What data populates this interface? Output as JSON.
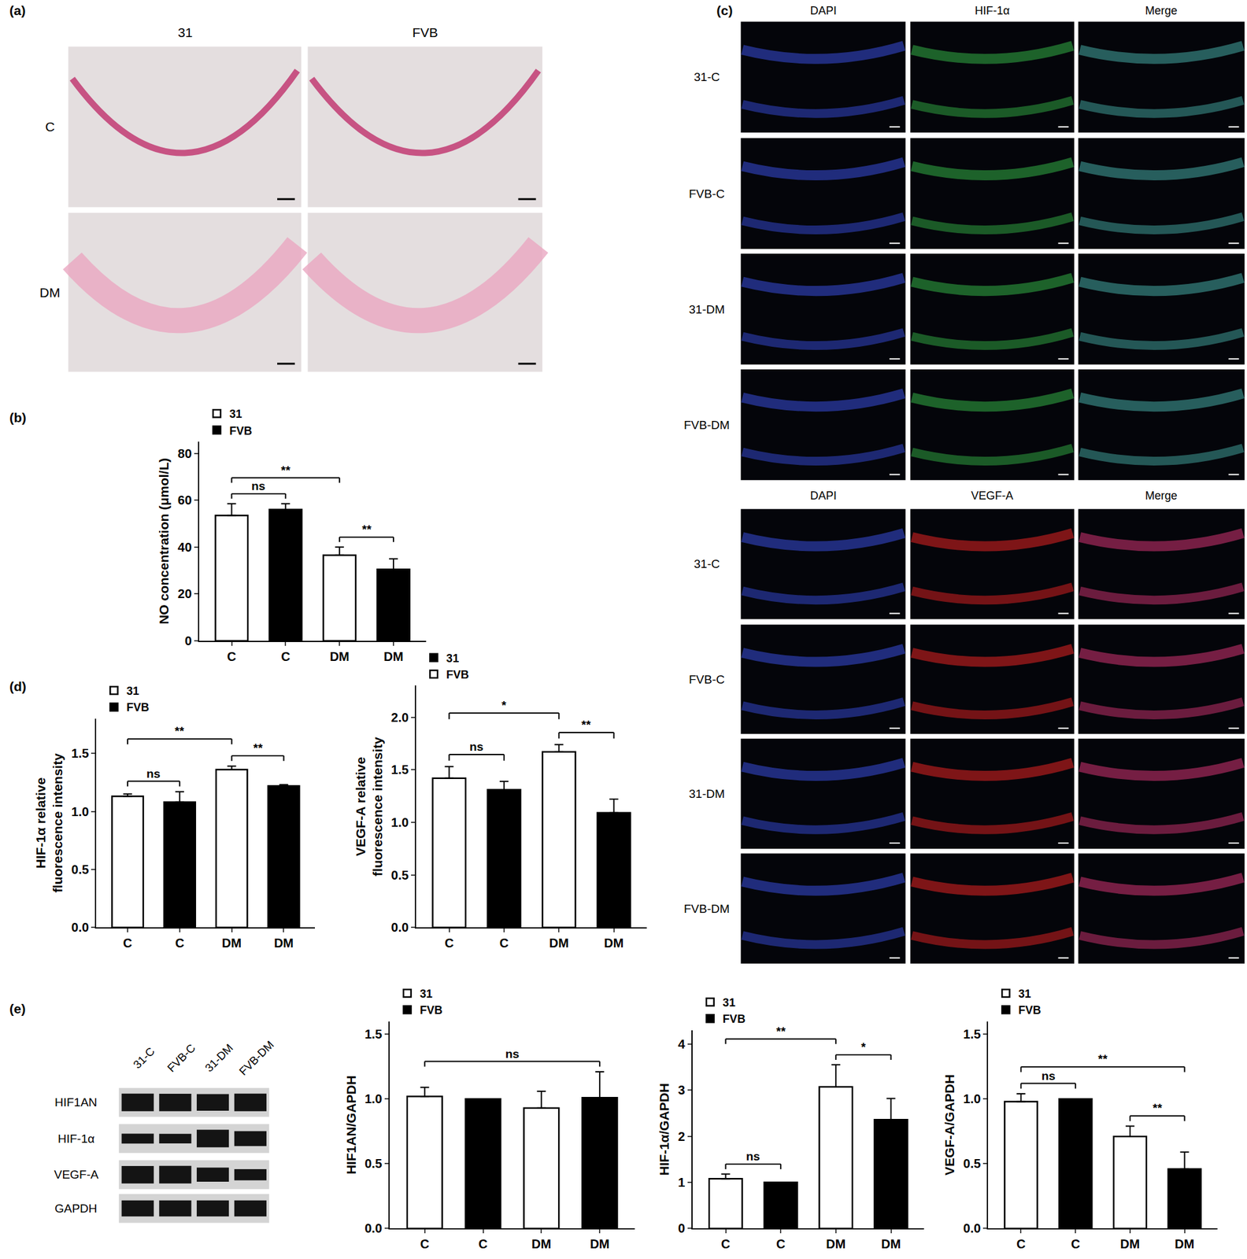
{
  "chart_data": [
    {
      "type": "bar",
      "y_label": "NO concentration (μmol/L)",
      "categories": [
        "C",
        "C",
        "DM",
        "DM"
      ],
      "series": [
        {
          "name": "31",
          "color": "#ffffff",
          "values": [
            53.5,
            null,
            36.5,
            null
          ],
          "errors": [
            5,
            null,
            3.5,
            null
          ]
        },
        {
          "name": "FVB",
          "color": "#000000",
          "values": [
            null,
            56,
            null,
            30.5
          ],
          "errors": [
            null,
            2.5,
            null,
            4.5
          ]
        }
      ],
      "ylim": [
        0,
        85
      ],
      "yticks": [
        0,
        20,
        40,
        60,
        80
      ],
      "legend": "upper left",
      "significance": [
        {
          "between": [
            0,
            1
          ],
          "text": "ns"
        },
        {
          "between": [
            2,
            3
          ],
          "text": "**"
        },
        {
          "between": [
            0,
            2
          ],
          "text": "**"
        }
      ]
    },
    {
      "type": "bar",
      "y_label": "HIF-1α relative\nfluorescence intensity",
      "categories": [
        "C",
        "C",
        "DM",
        "DM"
      ],
      "series": [
        {
          "name": "31",
          "color": "#ffffff",
          "values": [
            1.13,
            null,
            1.36,
            null
          ],
          "errors": [
            0.02,
            null,
            0.03,
            null
          ]
        },
        {
          "name": "FVB",
          "color": "#000000",
          "values": [
            null,
            1.08,
            null,
            1.22
          ],
          "errors": [
            null,
            0.09,
            null,
            0.01
          ]
        }
      ],
      "ylim": [
        0,
        1.8
      ],
      "yticks": [
        {
          "value": 0,
          "label": "0.0"
        },
        0.5,
        {
          "value": 1,
          "label": "1.0"
        },
        1.5
      ],
      "legend": "upper left",
      "significance": [
        {
          "between": [
            0,
            1
          ],
          "text": "ns"
        },
        {
          "between": [
            2,
            3
          ],
          "text": "**"
        },
        {
          "between": [
            0,
            2
          ],
          "text": "**"
        }
      ]
    },
    {
      "type": "bar",
      "y_label": "VEGF-A relative\nfluorescence intensity",
      "categories": [
        "C",
        "C",
        "DM",
        "DM"
      ],
      "series": [
        {
          "name": "31",
          "color": "#000000",
          "values": [
            null,
            1.31,
            null,
            1.09
          ],
          "errors": [
            null,
            0.08,
            null,
            0.13
          ]
        },
        {
          "name": "FVB",
          "color": "#ffffff",
          "values": [
            1.42,
            null,
            1.67,
            null
          ],
          "errors": [
            0.11,
            null,
            0.07,
            null
          ]
        }
      ],
      "ylim": [
        0,
        2.3
      ],
      "yticks": [
        {
          "value": 0,
          "label": "0.0"
        },
        0.5,
        {
          "value": 1,
          "label": "1.0"
        },
        1.5,
        {
          "value": 2,
          "label": "2.0"
        }
      ],
      "legend": "upper left",
      "significance": [
        {
          "between": [
            0,
            1
          ],
          "text": "ns"
        },
        {
          "between": [
            2,
            3
          ],
          "text": "**"
        },
        {
          "between": [
            0,
            2
          ],
          "text": "*"
        }
      ]
    },
    {
      "type": "bar",
      "y_label": "HIF1AN/GAPDH",
      "categories": [
        "C",
        "C",
        "DM",
        "DM"
      ],
      "series": [
        {
          "name": "31",
          "color": "#ffffff",
          "values": [
            1.02,
            null,
            0.93,
            null
          ],
          "errors": [
            0.07,
            null,
            0.13,
            null
          ]
        },
        {
          "name": "FVB",
          "color": "#000000",
          "values": [
            null,
            1.0,
            null,
            1.01
          ],
          "errors": [
            null,
            0,
            null,
            0.2
          ]
        }
      ],
      "ylim": [
        0,
        1.6
      ],
      "yticks": [
        {
          "value": 0,
          "label": "0.0"
        },
        0.5,
        {
          "value": 1,
          "label": "1.0"
        },
        1.5
      ],
      "legend": "upper left",
      "significance": [
        {
          "between": [
            0,
            3
          ],
          "text": "ns"
        }
      ]
    },
    {
      "type": "bar",
      "y_label": "HIF-1α/GAPDH",
      "categories": [
        "C",
        "C",
        "DM",
        "DM"
      ],
      "series": [
        {
          "name": "31",
          "color": "#ffffff",
          "values": [
            1.08,
            null,
            3.07,
            null
          ],
          "errors": [
            0.1,
            null,
            0.48,
            null
          ]
        },
        {
          "name": "FVB",
          "color": "#000000",
          "values": [
            null,
            1.0,
            null,
            2.36
          ],
          "errors": [
            null,
            0,
            null,
            0.46
          ]
        }
      ],
      "ylim": [
        0,
        4.3
      ],
      "yticks": [
        0,
        1,
        2,
        3,
        4
      ],
      "legend": "upper left",
      "significance": [
        {
          "between": [
            0,
            1
          ],
          "text": "ns"
        },
        {
          "between": [
            2,
            3
          ],
          "text": "*"
        },
        {
          "between": [
            0,
            2
          ],
          "text": "**"
        }
      ]
    },
    {
      "type": "bar",
      "y_label": "VEGF-A/GAPDH",
      "categories": [
        "C",
        "C",
        "DM",
        "DM"
      ],
      "series": [
        {
          "name": "31",
          "color": "#ffffff",
          "values": [
            0.98,
            null,
            0.71,
            null
          ],
          "errors": [
            0.06,
            null,
            0.08,
            null
          ]
        },
        {
          "name": "FVB",
          "color": "#000000",
          "values": [
            null,
            1.0,
            null,
            0.46
          ],
          "errors": [
            null,
            0,
            null,
            0.13
          ]
        }
      ],
      "ylim": [
        0,
        1.6
      ],
      "yticks": [
        {
          "value": 0,
          "label": "0.0"
        },
        0.5,
        {
          "value": 1,
          "label": "1.0"
        },
        1.5
      ],
      "legend": "upper left",
      "significance": [
        {
          "between": [
            0,
            1
          ],
          "text": "ns"
        },
        {
          "between": [
            2,
            3
          ],
          "text": "**"
        },
        {
          "between": [
            0,
            3
          ],
          "text": "**"
        }
      ]
    }
  ],
  "figure": {
    "panel_labels": [
      "(a)",
      "(b)",
      "(c)",
      "(d)",
      "(e)"
    ],
    "he_staining": {
      "columns": [
        "31",
        "FVB"
      ],
      "rows": [
        "C",
        "DM"
      ]
    },
    "immunofluorescence": [
      {
        "columns": [
          "DAPI",
          "HIF-1α",
          "Merge"
        ],
        "rows": [
          "31-C",
          "FVB-C",
          "31-DM",
          "FVB-DM"
        ]
      },
      {
        "columns": [
          "DAPI",
          "VEGF-A",
          "Merge"
        ],
        "rows": [
          "31-C",
          "FVB-C",
          "31-DM",
          "FVB-DM"
        ]
      }
    ],
    "western_blot": {
      "lanes": [
        "31-C",
        "FVB-C",
        "31-DM",
        "FVB-DM"
      ],
      "rows": [
        "HIF1AN",
        "HIF-1α",
        "VEGF-A",
        "GAPDH"
      ]
    }
  }
}
